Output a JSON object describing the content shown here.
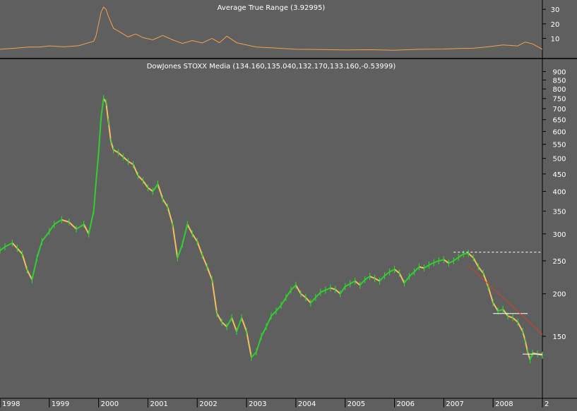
{
  "colors": {
    "background": "#5f5f5f",
    "text": "#ffffff",
    "atr_line": "#f0a050",
    "price_up": "#33cc33",
    "price_down": "#f0c060",
    "trendline": "#d84020",
    "support_line": "#ffffff"
  },
  "chart_data": [
    {
      "type": "line",
      "title": "Average True Range (3.92995)",
      "ylim": [
        0,
        34
      ],
      "yticks": [
        10,
        20,
        30
      ],
      "xlim": [
        1998.0,
        2009.0
      ],
      "series": [
        {
          "x": [
            1998.0,
            1998.3,
            1998.6,
            1998.8,
            1999.0,
            1999.3,
            1999.6,
            1999.9,
            1999.95,
            2000.0,
            2000.05,
            2000.1,
            2000.15,
            2000.2,
            2000.3,
            2000.45,
            2000.6,
            2000.75,
            2000.9,
            2001.1,
            2001.3,
            2001.5,
            2001.7,
            2001.9,
            2002.1,
            2002.3,
            2002.45,
            2002.6,
            2002.8,
            2003.0,
            2003.2,
            2003.5,
            2004.0,
            2004.5,
            2005.0,
            2005.5,
            2006.0,
            2006.5,
            2007.0,
            2007.3,
            2007.6,
            2007.9,
            2008.2,
            2008.5,
            2008.65,
            2008.8,
            2009.0
          ],
          "values": [
            2.5,
            3.2,
            4.1,
            4.0,
            4.8,
            4.2,
            5.0,
            8.0,
            12.0,
            20.0,
            28.0,
            31.5,
            30.0,
            25.0,
            17.0,
            14.0,
            11.0,
            13.0,
            10.5,
            9.0,
            12.0,
            9.0,
            6.5,
            8.5,
            6.8,
            10.0,
            7.0,
            11.5,
            7.0,
            5.5,
            4.0,
            3.5,
            2.5,
            2.3,
            2.0,
            2.2,
            1.8,
            2.5,
            2.6,
            3.0,
            3.2,
            4.2,
            5.5,
            4.8,
            7.5,
            6.2,
            2.5
          ]
        }
      ]
    },
    {
      "type": "line",
      "title": "DowJones STOXX Media (134.160,135.040,132.170,133.160,-0.53999)",
      "y_scale": "log",
      "ylim": [
        100,
        960
      ],
      "yticks": [
        150,
        200,
        250,
        300,
        350,
        400,
        450,
        500,
        550,
        600,
        650,
        700,
        750,
        800,
        850,
        900
      ],
      "xlim": [
        1998.0,
        2009.0
      ],
      "xticks": [
        "1998",
        "1999",
        "2000",
        "2001",
        "2002",
        "2003",
        "2004",
        "2005",
        "2006",
        "2007",
        "2008",
        "2"
      ],
      "series": [
        {
          "x": [
            1998.0,
            1998.1,
            1998.25,
            1998.35,
            1998.45,
            1998.55,
            1998.65,
            1998.75,
            1998.85,
            1999.0,
            1999.1,
            1999.25,
            1999.4,
            1999.55,
            1999.7,
            1999.8,
            1999.9,
            1999.95,
            2000.0,
            2000.05,
            2000.1,
            2000.15,
            2000.2,
            2000.25,
            2000.3,
            2000.4,
            2000.5,
            2000.6,
            2000.7,
            2000.8,
            2000.9,
            2001.0,
            2001.1,
            2001.2,
            2001.3,
            2001.4,
            2001.5,
            2001.6,
            2001.7,
            2001.8,
            2001.9,
            2002.0,
            2002.1,
            2002.2,
            2002.3,
            2002.4,
            2002.5,
            2002.6,
            2002.7,
            2002.8,
            2002.9,
            2003.0,
            2003.1,
            2003.2,
            2003.3,
            2003.4,
            2003.5,
            2003.6,
            2003.7,
            2003.8,
            2003.9,
            2004.0,
            2004.1,
            2004.2,
            2004.3,
            2004.4,
            2004.5,
            2004.6,
            2004.7,
            2004.8,
            2004.9,
            2005.0,
            2005.1,
            2005.2,
            2005.3,
            2005.4,
            2005.5,
            2005.6,
            2005.7,
            2005.8,
            2005.9,
            2006.0,
            2006.1,
            2006.2,
            2006.3,
            2006.4,
            2006.5,
            2006.6,
            2006.7,
            2006.8,
            2006.9,
            2007.0,
            2007.1,
            2007.2,
            2007.3,
            2007.4,
            2007.5,
            2007.6,
            2007.7,
            2007.8,
            2007.9,
            2008.0,
            2008.1,
            2008.2,
            2008.3,
            2008.4,
            2008.5,
            2008.6,
            2008.65,
            2008.7,
            2008.75,
            2008.8,
            2008.9,
            2009.0
          ],
          "values": [
            268,
            275,
            282,
            272,
            262,
            235,
            220,
            255,
            285,
            305,
            320,
            330,
            325,
            310,
            320,
            300,
            350,
            430,
            520,
            660,
            750,
            730,
            640,
            560,
            530,
            520,
            505,
            490,
            480,
            445,
            430,
            410,
            400,
            420,
            380,
            360,
            320,
            255,
            280,
            320,
            300,
            285,
            260,
            240,
            220,
            175,
            165,
            160,
            170,
            155,
            170,
            155,
            130,
            135,
            150,
            160,
            172,
            178,
            185,
            195,
            205,
            212,
            200,
            195,
            188,
            195,
            202,
            205,
            208,
            206,
            200,
            210,
            214,
            218,
            212,
            220,
            225,
            222,
            218,
            226,
            232,
            236,
            230,
            215,
            225,
            232,
            240,
            238,
            243,
            247,
            250,
            252,
            246,
            250,
            256,
            262,
            263,
            255,
            240,
            230,
            210,
            188,
            178,
            180,
            172,
            170,
            165,
            155,
            146,
            135,
            128,
            134,
            133,
            132
          ]
        }
      ],
      "annotations": [
        {
          "type": "horizontal",
          "style": "dashed",
          "value": 265,
          "from_x": 2007.2,
          "to_x": 2009.0
        },
        {
          "type": "horizontal",
          "style": "solid",
          "value": 175,
          "from_x": 2008.0,
          "to_x": 2008.7
        },
        {
          "type": "horizontal",
          "style": "solid",
          "value": 133,
          "from_x": 2008.6,
          "to_x": 2009.0
        },
        {
          "type": "trendline",
          "from": [
            2007.5,
            242
          ],
          "to": [
            2009.0,
            152
          ]
        }
      ]
    }
  ]
}
